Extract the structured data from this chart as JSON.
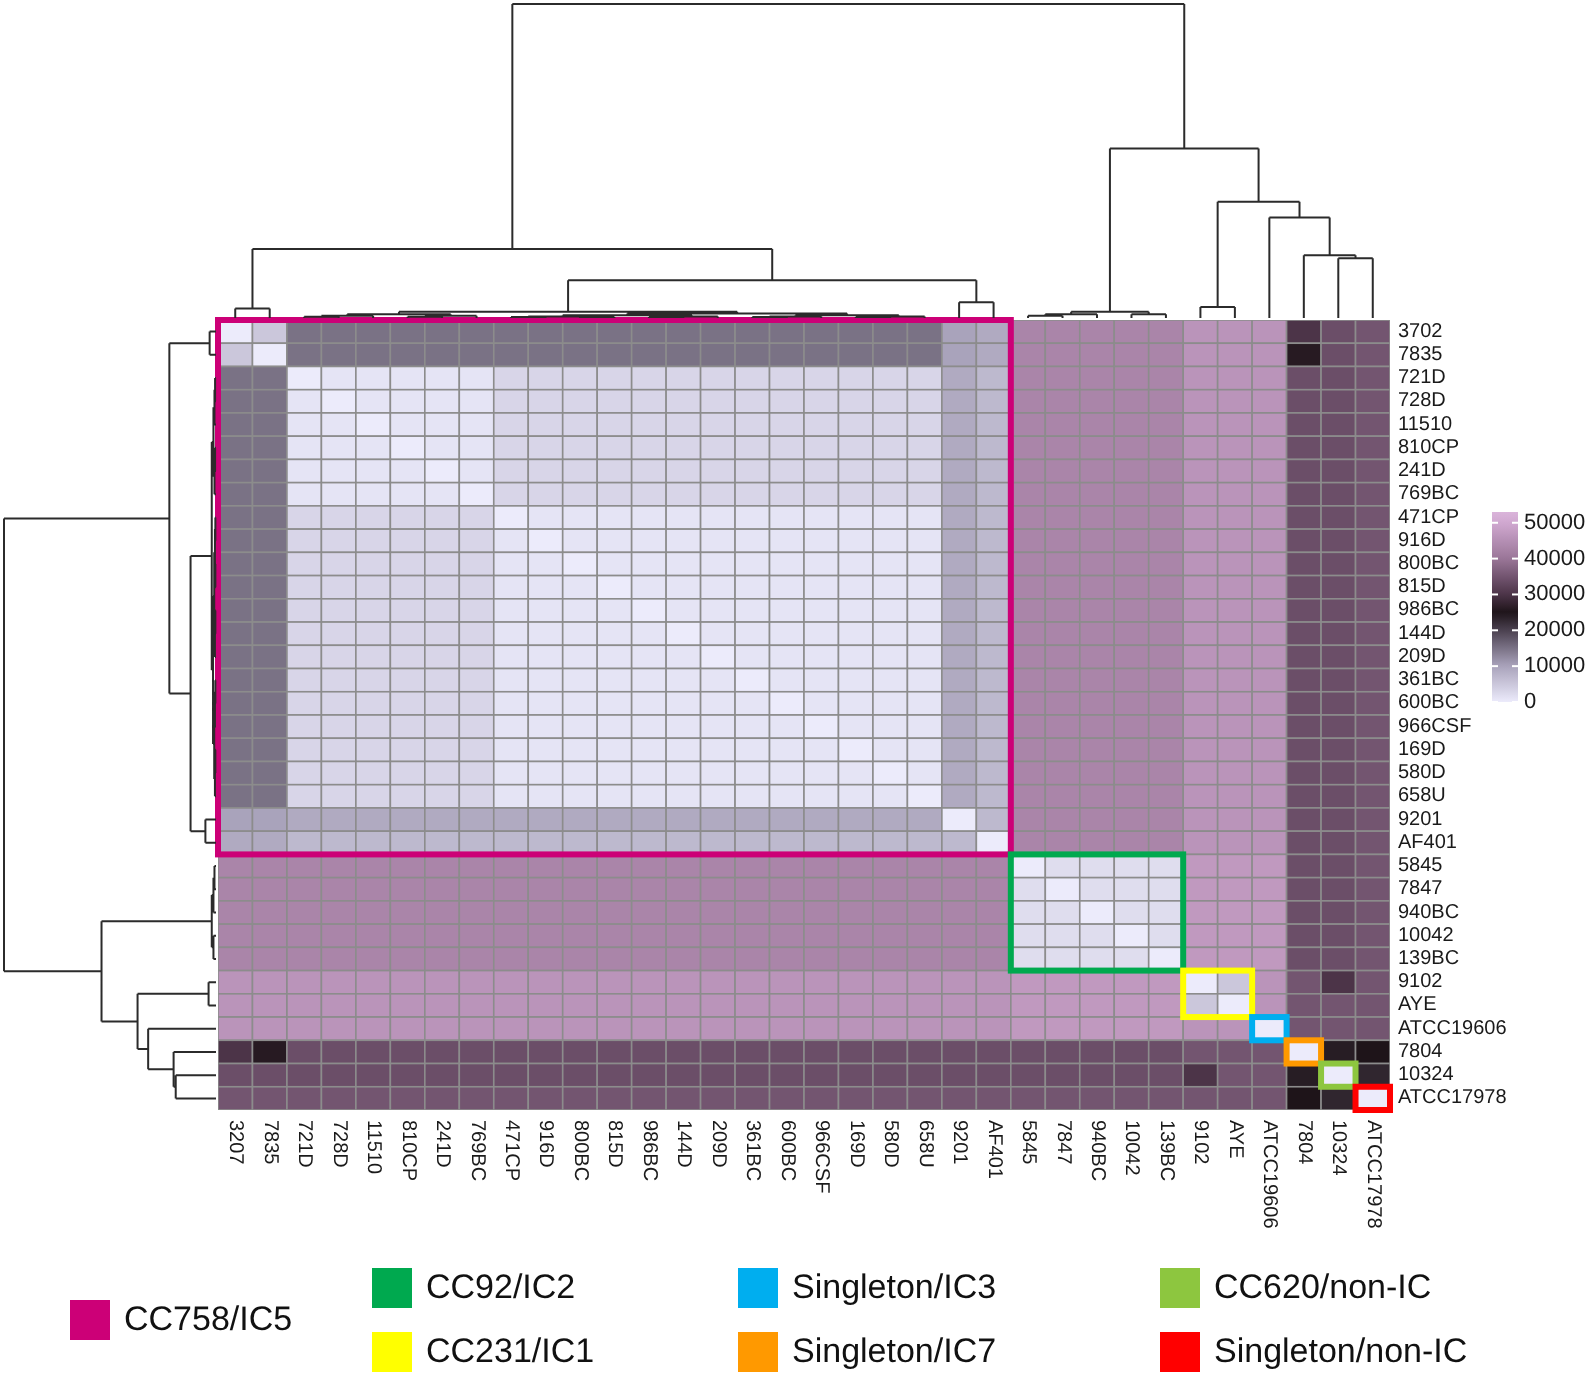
{
  "chart_data": {
    "type": "heatmap",
    "categories": [
      "3207",
      "7835",
      "721D",
      "728D",
      "11510",
      "810CP",
      "241D",
      "769BC",
      "471CP",
      "916D",
      "800BC",
      "815D",
      "986BC",
      "144D",
      "209D",
      "361BC",
      "600BC",
      "966CSF",
      "169D",
      "580D",
      "658U",
      "9201",
      "AF401",
      "5845",
      "7847",
      "940BC",
      "10042",
      "139BC",
      "9102",
      "AYE",
      "ATCC19606",
      "7804",
      "10324",
      "ATCC17978"
    ],
    "y_categories": [
      "3702",
      "7835",
      "721D",
      "728D",
      "11510",
      "810CP",
      "241D",
      "769BC",
      "471CP",
      "916D",
      "800BC",
      "815D",
      "986BC",
      "144D",
      "209D",
      "361BC",
      "600BC",
      "966CSF",
      "169D",
      "580D",
      "658U",
      "9201",
      "AF401",
      "5845",
      "7847",
      "940BC",
      "10042",
      "139BC",
      "9102",
      "AYE",
      "ATCC19606",
      "7804",
      "10324",
      "ATCC17978"
    ],
    "cells": [
      [
        0,
        5000,
        15000,
        15000,
        15000,
        15000,
        15000,
        15000,
        15000,
        15000,
        15000,
        15000,
        15000,
        15000,
        15000,
        15000,
        15000,
        15000,
        15000,
        15000,
        15000,
        10000,
        9000,
        43000,
        43000,
        43000,
        43000,
        43000,
        46000,
        46000,
        46000,
        30000,
        34000,
        35000
      ],
      [
        5000,
        0,
        15000,
        15000,
        15000,
        15000,
        15000,
        15000,
        15000,
        15000,
        15000,
        15000,
        15000,
        15000,
        15000,
        15000,
        15000,
        15000,
        15000,
        15000,
        15000,
        10000,
        9000,
        43000,
        43000,
        43000,
        43000,
        43000,
        46000,
        46000,
        46000,
        26000,
        34000,
        35000
      ],
      [
        15000,
        15000,
        0,
        1000,
        1000,
        1000,
        1000,
        1000,
        3000,
        3000,
        3000,
        3000,
        3000,
        3000,
        3000,
        3000,
        3000,
        3000,
        3000,
        3000,
        3000,
        9000,
        7000,
        43000,
        43000,
        43000,
        43000,
        43000,
        46000,
        46000,
        46000,
        34000,
        34000,
        35000
      ],
      [
        15000,
        15000,
        1000,
        0,
        1000,
        1000,
        1000,
        1000,
        3000,
        3000,
        3000,
        3000,
        3000,
        3000,
        3000,
        3000,
        3000,
        3000,
        3000,
        3000,
        3000,
        9000,
        7000,
        43000,
        43000,
        43000,
        43000,
        43000,
        46000,
        46000,
        46000,
        34000,
        34000,
        35000
      ],
      [
        15000,
        15000,
        1000,
        1000,
        0,
        1000,
        1000,
        1000,
        3000,
        3000,
        3000,
        3000,
        3000,
        3000,
        3000,
        3000,
        3000,
        3000,
        3000,
        3000,
        3000,
        9000,
        7000,
        43000,
        43000,
        43000,
        43000,
        43000,
        46000,
        46000,
        46000,
        34000,
        34000,
        35000
      ],
      [
        15000,
        15000,
        1000,
        1000,
        1000,
        0,
        1000,
        1000,
        3000,
        3000,
        3000,
        3000,
        3000,
        3000,
        3000,
        3000,
        3000,
        3000,
        3000,
        3000,
        3000,
        9000,
        7000,
        43000,
        43000,
        43000,
        43000,
        43000,
        46000,
        46000,
        46000,
        34000,
        34000,
        35000
      ],
      [
        15000,
        15000,
        1000,
        1000,
        1000,
        1000,
        0,
        1000,
        3000,
        3000,
        3000,
        3000,
        3000,
        3000,
        3000,
        3000,
        3000,
        3000,
        3000,
        3000,
        3000,
        9000,
        7000,
        43000,
        43000,
        43000,
        43000,
        43000,
        46000,
        46000,
        46000,
        34000,
        34000,
        35000
      ],
      [
        15000,
        15000,
        1000,
        1000,
        1000,
        1000,
        1000,
        0,
        3000,
        3000,
        3000,
        3000,
        3000,
        3000,
        3000,
        3000,
        3000,
        3000,
        3000,
        3000,
        3000,
        9000,
        7000,
        43000,
        43000,
        43000,
        43000,
        43000,
        46000,
        46000,
        46000,
        34000,
        34000,
        35000
      ],
      [
        15000,
        15000,
        3000,
        3000,
        3000,
        3000,
        3000,
        3000,
        0,
        1000,
        1000,
        1000,
        1000,
        1000,
        1000,
        1000,
        1000,
        1000,
        1000,
        1000,
        1000,
        9000,
        7000,
        43000,
        43000,
        43000,
        43000,
        43000,
        46000,
        46000,
        46000,
        34000,
        34000,
        35000
      ],
      [
        15000,
        15000,
        3000,
        3000,
        3000,
        3000,
        3000,
        3000,
        1000,
        0,
        1000,
        1000,
        1000,
        1000,
        1000,
        1000,
        1000,
        1000,
        1000,
        1000,
        1000,
        9000,
        7000,
        43000,
        43000,
        43000,
        43000,
        43000,
        46000,
        46000,
        46000,
        34000,
        34000,
        35000
      ],
      [
        15000,
        15000,
        3000,
        3000,
        3000,
        3000,
        3000,
        3000,
        1000,
        1000,
        0,
        1000,
        1000,
        1000,
        1000,
        1000,
        1000,
        1000,
        1000,
        1000,
        1000,
        9000,
        7000,
        43000,
        43000,
        43000,
        43000,
        43000,
        46000,
        46000,
        46000,
        34000,
        34000,
        35000
      ],
      [
        15000,
        15000,
        3000,
        3000,
        3000,
        3000,
        3000,
        3000,
        1000,
        1000,
        1000,
        0,
        1000,
        1000,
        1000,
        1000,
        1000,
        1000,
        1000,
        1000,
        1000,
        9000,
        7000,
        43000,
        43000,
        43000,
        43000,
        43000,
        46000,
        46000,
        46000,
        34000,
        34000,
        35000
      ],
      [
        15000,
        15000,
        3000,
        3000,
        3000,
        3000,
        3000,
        3000,
        1000,
        1000,
        1000,
        1000,
        0,
        1000,
        1000,
        1000,
        1000,
        1000,
        1000,
        1000,
        1000,
        9000,
        7000,
        43000,
        43000,
        43000,
        43000,
        43000,
        46000,
        46000,
        46000,
        34000,
        34000,
        35000
      ],
      [
        15000,
        15000,
        3000,
        3000,
        3000,
        3000,
        3000,
        3000,
        1000,
        1000,
        1000,
        1000,
        1000,
        0,
        1000,
        1000,
        1000,
        1000,
        1000,
        1000,
        1000,
        9000,
        7000,
        43000,
        43000,
        43000,
        43000,
        43000,
        46000,
        46000,
        46000,
        34000,
        34000,
        35000
      ],
      [
        15000,
        15000,
        3000,
        3000,
        3000,
        3000,
        3000,
        3000,
        1000,
        1000,
        1000,
        1000,
        1000,
        1000,
        0,
        1000,
        1000,
        1000,
        1000,
        1000,
        1000,
        9000,
        7000,
        43000,
        43000,
        43000,
        43000,
        43000,
        46000,
        46000,
        46000,
        34000,
        34000,
        35000
      ],
      [
        15000,
        15000,
        3000,
        3000,
        3000,
        3000,
        3000,
        3000,
        1000,
        1000,
        1000,
        1000,
        1000,
        1000,
        1000,
        0,
        1000,
        1000,
        1000,
        1000,
        1000,
        9000,
        7000,
        43000,
        43000,
        43000,
        43000,
        43000,
        46000,
        46000,
        46000,
        34000,
        34000,
        35000
      ],
      [
        15000,
        15000,
        3000,
        3000,
        3000,
        3000,
        3000,
        3000,
        1000,
        1000,
        1000,
        1000,
        1000,
        1000,
        1000,
        1000,
        0,
        1000,
        1000,
        1000,
        1000,
        9000,
        7000,
        43000,
        43000,
        43000,
        43000,
        43000,
        46000,
        46000,
        46000,
        34000,
        34000,
        35000
      ],
      [
        15000,
        15000,
        3000,
        3000,
        3000,
        3000,
        3000,
        3000,
        1000,
        1000,
        1000,
        1000,
        1000,
        1000,
        1000,
        1000,
        1000,
        0,
        1000,
        1000,
        1000,
        9000,
        7000,
        43000,
        43000,
        43000,
        43000,
        43000,
        46000,
        46000,
        46000,
        34000,
        34000,
        35000
      ],
      [
        15000,
        15000,
        3000,
        3000,
        3000,
        3000,
        3000,
        3000,
        1000,
        1000,
        1000,
        1000,
        1000,
        1000,
        1000,
        1000,
        1000,
        1000,
        0,
        1000,
        1000,
        9000,
        7000,
        43000,
        43000,
        43000,
        43000,
        43000,
        46000,
        46000,
        46000,
        34000,
        34000,
        35000
      ],
      [
        15000,
        15000,
        3000,
        3000,
        3000,
        3000,
        3000,
        3000,
        1000,
        1000,
        1000,
        1000,
        1000,
        1000,
        1000,
        1000,
        1000,
        1000,
        1000,
        0,
        1000,
        9000,
        7000,
        43000,
        43000,
        43000,
        43000,
        43000,
        46000,
        46000,
        46000,
        34000,
        34000,
        35000
      ],
      [
        15000,
        15000,
        3000,
        3000,
        3000,
        3000,
        3000,
        3000,
        1000,
        1000,
        1000,
        1000,
        1000,
        1000,
        1000,
        1000,
        1000,
        1000,
        1000,
        1000,
        0,
        9000,
        7000,
        43000,
        43000,
        43000,
        43000,
        43000,
        46000,
        46000,
        46000,
        34000,
        34000,
        35000
      ],
      [
        10000,
        10000,
        9000,
        9000,
        9000,
        9000,
        9000,
        9000,
        9000,
        9000,
        9000,
        9000,
        9000,
        9000,
        9000,
        9000,
        9000,
        9000,
        9000,
        9000,
        9000,
        0,
        7000,
        43000,
        43000,
        43000,
        43000,
        43000,
        46000,
        46000,
        46000,
        34000,
        34000,
        35000
      ],
      [
        9000,
        9000,
        7000,
        7000,
        7000,
        7000,
        7000,
        7000,
        7000,
        7000,
        7000,
        7000,
        7000,
        7000,
        7000,
        7000,
        7000,
        7000,
        7000,
        7000,
        7000,
        7000,
        0,
        43000,
        43000,
        43000,
        43000,
        43000,
        46000,
        46000,
        46000,
        34000,
        34000,
        35000
      ],
      [
        43000,
        43000,
        43000,
        43000,
        43000,
        43000,
        43000,
        43000,
        43000,
        43000,
        43000,
        43000,
        43000,
        43000,
        43000,
        43000,
        43000,
        43000,
        43000,
        43000,
        43000,
        43000,
        43000,
        0,
        2000,
        2000,
        2000,
        2000,
        47000,
        47000,
        47000,
        34000,
        34000,
        35000
      ],
      [
        43000,
        43000,
        43000,
        43000,
        43000,
        43000,
        43000,
        43000,
        43000,
        43000,
        43000,
        43000,
        43000,
        43000,
        43000,
        43000,
        43000,
        43000,
        43000,
        43000,
        43000,
        43000,
        43000,
        2000,
        0,
        2000,
        2000,
        2000,
        47000,
        47000,
        47000,
        34000,
        34000,
        35000
      ],
      [
        43000,
        43000,
        43000,
        43000,
        43000,
        43000,
        43000,
        43000,
        43000,
        43000,
        43000,
        43000,
        43000,
        43000,
        43000,
        43000,
        43000,
        43000,
        43000,
        43000,
        43000,
        43000,
        43000,
        2000,
        2000,
        0,
        2000,
        2000,
        47000,
        47000,
        47000,
        34000,
        34000,
        35000
      ],
      [
        43000,
        43000,
        43000,
        43000,
        43000,
        43000,
        43000,
        43000,
        43000,
        43000,
        43000,
        43000,
        43000,
        43000,
        43000,
        43000,
        43000,
        43000,
        43000,
        43000,
        43000,
        43000,
        43000,
        2000,
        2000,
        2000,
        0,
        2000,
        47000,
        47000,
        47000,
        34000,
        34000,
        35000
      ],
      [
        43000,
        43000,
        43000,
        43000,
        43000,
        43000,
        43000,
        43000,
        43000,
        43000,
        43000,
        43000,
        43000,
        43000,
        43000,
        43000,
        43000,
        43000,
        43000,
        43000,
        43000,
        43000,
        43000,
        2000,
        2000,
        2000,
        2000,
        0,
        47000,
        47000,
        47000,
        34000,
        34000,
        35000
      ],
      [
        46000,
        46000,
        46000,
        46000,
        46000,
        46000,
        46000,
        46000,
        46000,
        46000,
        46000,
        46000,
        46000,
        46000,
        46000,
        46000,
        46000,
        46000,
        46000,
        46000,
        46000,
        46000,
        46000,
        47000,
        47000,
        47000,
        47000,
        47000,
        0,
        5000,
        46000,
        35000,
        30000,
        35000
      ],
      [
        46000,
        46000,
        46000,
        46000,
        46000,
        46000,
        46000,
        46000,
        46000,
        46000,
        46000,
        46000,
        46000,
        46000,
        46000,
        46000,
        46000,
        46000,
        46000,
        46000,
        46000,
        46000,
        46000,
        47000,
        47000,
        47000,
        47000,
        47000,
        5000,
        0,
        46000,
        35000,
        35000,
        35000
      ],
      [
        46000,
        46000,
        46000,
        46000,
        46000,
        46000,
        46000,
        46000,
        46000,
        46000,
        46000,
        46000,
        46000,
        46000,
        46000,
        46000,
        46000,
        46000,
        46000,
        46000,
        46000,
        46000,
        46000,
        47000,
        47000,
        47000,
        47000,
        47000,
        46000,
        46000,
        0,
        35000,
        35000,
        35000
      ],
      [
        30000,
        26000,
        34000,
        34000,
        34000,
        34000,
        34000,
        34000,
        34000,
        34000,
        34000,
        34000,
        34000,
        34000,
        34000,
        34000,
        34000,
        34000,
        34000,
        34000,
        34000,
        34000,
        34000,
        34000,
        34000,
        34000,
        34000,
        34000,
        35000,
        35000,
        35000,
        0,
        24000,
        25000
      ],
      [
        34000,
        34000,
        34000,
        34000,
        34000,
        34000,
        34000,
        34000,
        34000,
        34000,
        34000,
        34000,
        34000,
        34000,
        34000,
        34000,
        34000,
        34000,
        34000,
        34000,
        34000,
        34000,
        34000,
        34000,
        34000,
        34000,
        34000,
        34000,
        30000,
        35000,
        35000,
        24000,
        0,
        23000
      ],
      [
        35000,
        35000,
        35000,
        35000,
        35000,
        35000,
        35000,
        35000,
        35000,
        35000,
        35000,
        35000,
        35000,
        35000,
        35000,
        35000,
        35000,
        35000,
        35000,
        35000,
        35000,
        35000,
        35000,
        35000,
        35000,
        35000,
        35000,
        35000,
        35000,
        35000,
        35000,
        25000,
        23000,
        0
      ]
    ],
    "clim": [
      0,
      53000
    ],
    "cticks": [
      0,
      10000,
      20000,
      30000,
      40000,
      50000
    ],
    "annotations": [
      "CC758/IC5",
      "CC92/IC2",
      "CC231/IC1",
      "Singleton/IC3",
      "Singleton/IC7",
      "CC620/non-IC",
      "Singleton/non-IC"
    ]
  }
}
